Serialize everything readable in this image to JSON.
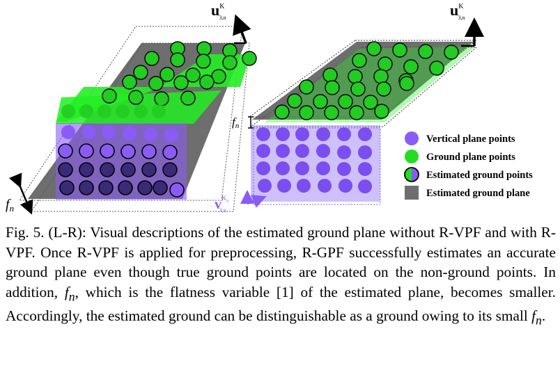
{
  "figure": {
    "left_panel": {
      "normal_vector_label": "u",
      "normal_vector_superscript": "K",
      "normal_vector_subscript": "3,n",
      "flatness_label": "f",
      "flatness_subscript": "n"
    },
    "right_panel": {
      "normal_vector_label": "u",
      "normal_vector_superscript": "K",
      "normal_vector_subscript": "3,n",
      "flatness_label": "f",
      "flatness_subscript": "n",
      "vertical_vector_label": "v",
      "vertical_vector_superscript": "K",
      "vertical_vector_superscript_sub": "v",
      "vertical_vector_subscript": "3,n"
    },
    "legend": [
      {
        "label": "Vertical plane points",
        "symbol": "purple-circle",
        "color": "#8a5cf5"
      },
      {
        "label": "Ground plane points",
        "symbol": "green-circle",
        "color": "#22dd22"
      },
      {
        "label": "Estimated ground points",
        "symbol": "half-green-half-purple-circle",
        "color": "#000000"
      },
      {
        "label": "Estimated ground plane",
        "symbol": "gray-square",
        "color": "#6e6e6e"
      }
    ],
    "colors": {
      "purple": "#8a5cf5",
      "green": "#22dd22",
      "gray_plane": "#555555",
      "purple_region": "#a58cf8",
      "vector_purple": "#8a5cf5"
    }
  },
  "caption": {
    "prefix": "Fig. 5. (L-R): Visual descriptions of the estimated ground plane without R-VPF and with R-VPF. Once R-VPF is applied for preprocessing, R-GPF successfully estimates an accurate ground plane even though true ground points are located on the non-ground points. In addition, ",
    "var1_main": "f",
    "var1_sub": "n",
    "middle": ", which is the flatness variable [1] of the estimated plane, becomes smaller. Accordingly, the estimated ground can be distinguishable as a ground owing to its small ",
    "var2_main": "f",
    "var2_sub": "n",
    "suffix": "."
  }
}
